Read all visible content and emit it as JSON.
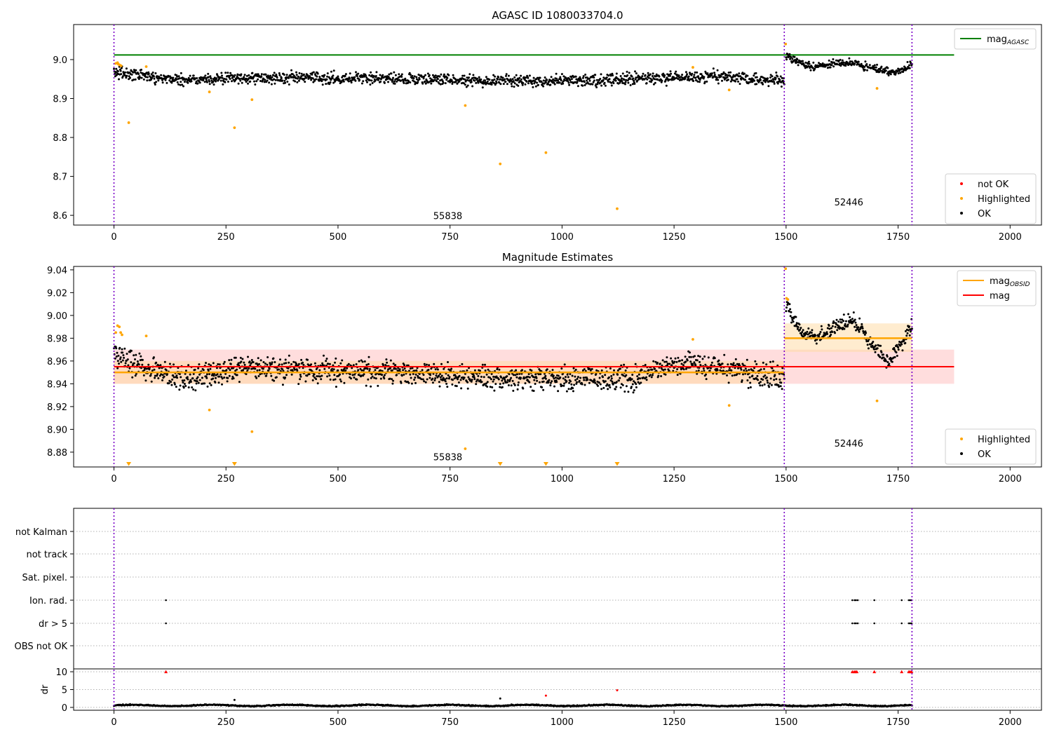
{
  "colors": {
    "ok": "#000000",
    "highlighted": "#ffa500",
    "not_ok": "#ff0000",
    "agasc_line": "#008000",
    "mag_line": "#ff0000",
    "mag_obsid_line": "#ffa500",
    "obsid_boundary": "#7b00c8",
    "mag_band": "#ffb3b3",
    "obsid_band": "#ffd9a0"
  },
  "chart_data": [
    {
      "type": "scatter",
      "panel": "agasc",
      "title": "AGASC ID 1080033704.0",
      "xlabel": "",
      "ylabel": "",
      "xlim": [
        -90,
        2070
      ],
      "ylim": [
        8.575,
        9.09
      ],
      "xticks": [
        0,
        250,
        500,
        750,
        1000,
        1250,
        1500,
        1750,
        2000
      ],
      "yticks": [
        8.6,
        8.7,
        8.8,
        8.9,
        9.0
      ],
      "ytick_labels": [
        "8.6",
        "8.7",
        "8.8",
        "8.9",
        "9.0"
      ],
      "legend_placement": [
        "top-right",
        "bottom-right"
      ],
      "grid": false,
      "mag_agasc": {
        "name": "mag_{AGASC}",
        "value": 9.012,
        "x_range": [
          0,
          1875
        ]
      },
      "obsid_boundaries": [
        0,
        1496,
        1781
      ],
      "obsid_labels": [
        {
          "text": "55838",
          "x": 745,
          "y": 8.59
        },
        {
          "text": "52446",
          "x": 1640,
          "y": 8.625
        }
      ],
      "series": [
        {
          "name": "not OK",
          "color": "#ff0000",
          "points": []
        },
        {
          "name": "Highlighted",
          "color": "#ffa500",
          "points": [
            [
              4,
              8.99
            ],
            [
              8,
              8.992
            ],
            [
              10,
              8.988
            ],
            [
              13,
              8.986
            ],
            [
              16,
              8.984
            ],
            [
              33,
              8.838
            ],
            [
              72,
              8.982
            ],
            [
              213,
              8.917
            ],
            [
              269,
              8.825
            ],
            [
              308,
              8.897
            ],
            [
              784,
              8.882
            ],
            [
              862,
              8.732
            ],
            [
              964,
              8.761
            ],
            [
              1123,
              8.617
            ],
            [
              1292,
              8.98
            ],
            [
              1373,
              8.922
            ],
            [
              1499,
              9.04
            ],
            [
              1703,
              8.926
            ]
          ]
        },
        {
          "name": "OK",
          "color": "#000000",
          "segments": [
            {
              "x_range": [
                0,
                1496
              ],
              "mean": 8.951,
              "spread": 0.013,
              "wave": [
                [
                  0,
                  8.968
                ],
                [
                  40,
                  8.962
                ],
                [
                  150,
                  8.948
                ],
                [
                  300,
                  8.953
                ],
                [
                  600,
                  8.952
                ],
                [
                  900,
                  8.945
                ],
                [
                  1200,
                  8.951
                ],
                [
                  1350,
                  8.958
                ],
                [
                  1496,
                  8.944
                ]
              ]
            },
            {
              "x_range": [
                1500,
                1781
              ],
              "mean": 8.985,
              "spread": 0.009,
              "wave": [
                [
                  1500,
                  9.006
                ],
                [
                  1560,
                  8.98
                ],
                [
                  1610,
                  8.99
                ],
                [
                  1650,
                  8.992
                ],
                [
                  1700,
                  8.975
                ],
                [
                  1740,
                  8.966
                ],
                [
                  1781,
                  8.986
                ]
              ]
            }
          ]
        }
      ]
    },
    {
      "type": "scatter",
      "panel": "magnitude",
      "title": "Magnitude Estimates",
      "xlabel": "",
      "ylabel": "",
      "xlim": [
        -90,
        2070
      ],
      "ylim": [
        8.867,
        9.043
      ],
      "xticks": [
        0,
        250,
        500,
        750,
        1000,
        1250,
        1500,
        1750,
        2000
      ],
      "yticks": [
        8.88,
        8.9,
        8.92,
        8.94,
        8.96,
        8.98,
        9.0,
        9.02,
        9.04
      ],
      "ytick_labels": [
        "8.88",
        "8.90",
        "8.92",
        "8.94",
        "8.96",
        "8.98",
        "9.00",
        "9.02",
        "9.04"
      ],
      "legend_placement": [
        "top-right",
        "bottom-right"
      ],
      "grid": false,
      "mag": {
        "name": "mag",
        "value": 8.955,
        "band": [
          8.94,
          8.97
        ],
        "x_range": [
          0,
          1875
        ]
      },
      "mag_obsid": [
        {
          "name": "mag_{OBSID}",
          "value": 8.95,
          "band": [
            8.94,
            8.96
          ],
          "x_range": [
            0,
            1496
          ]
        },
        {
          "value": 8.98,
          "band": [
            8.968,
            8.993
          ],
          "x_range": [
            1496,
            1781
          ]
        }
      ],
      "obsid_boundaries": [
        0,
        1496,
        1781
      ],
      "obsid_labels": [
        {
          "text": "55838",
          "x": 745,
          "y": 8.873
        },
        {
          "text": "52446",
          "x": 1640,
          "y": 8.885
        }
      ],
      "below_range_markers_x": [
        33,
        269,
        862,
        964,
        1123
      ],
      "series": [
        {
          "name": "Highlighted",
          "color": "#ffa500",
          "points": [
            [
              4,
              8.985
            ],
            [
              8,
              8.991
            ],
            [
              12,
              8.99
            ],
            [
              15,
              8.985
            ],
            [
              18,
              8.983
            ],
            [
              72,
              8.982
            ],
            [
              213,
              8.917
            ],
            [
              308,
              8.898
            ],
            [
              784,
              8.883
            ],
            [
              1292,
              8.979
            ],
            [
              1373,
              8.921
            ],
            [
              1499,
              9.041
            ],
            [
              1501,
              9.015
            ],
            [
              1504,
              9.014
            ],
            [
              1703,
              8.925
            ]
          ]
        },
        {
          "name": "OK",
          "color": "#000000",
          "segments": [
            {
              "x_range": [
                0,
                1496
              ],
              "mean": 8.95,
              "spread": 0.009,
              "wave": [
                [
                  0,
                  8.968
                ],
                [
                  40,
                  8.958
                ],
                [
                  160,
                  8.944
                ],
                [
                  300,
                  8.954
                ],
                [
                  600,
                  8.95
                ],
                [
                  900,
                  8.944
                ],
                [
                  1150,
                  8.945
                ],
                [
                  1280,
                  8.958
                ],
                [
                  1380,
                  8.952
                ],
                [
                  1496,
                  8.945
                ]
              ]
            },
            {
              "x_range": [
                1500,
                1781
              ],
              "mean": 8.98,
              "spread": 0.006,
              "wave": [
                [
                  1500,
                  9.008
                ],
                [
                  1525,
                  8.99
                ],
                [
                  1560,
                  8.98
                ],
                [
                  1610,
                  8.99
                ],
                [
                  1650,
                  8.996
                ],
                [
                  1690,
                  8.975
                ],
                [
                  1730,
                  8.958
                ],
                [
                  1781,
                  8.99
                ]
              ]
            }
          ]
        }
      ]
    },
    {
      "type": "scatter",
      "panel": "flags",
      "title": "",
      "xlim": [
        -90,
        2070
      ],
      "xticks": [
        0,
        250,
        500,
        750,
        1000,
        1250,
        1500,
        1750,
        2000
      ],
      "grid": true,
      "obsid_boundaries": [
        0,
        1496,
        1781
      ],
      "flag_rows": [
        "not Kalman",
        "not track",
        "Sat. pixel.",
        "Ion. rad.",
        "dr > 5",
        "OBS not OK"
      ],
      "flag_points": {
        "Ion. rad.": [
          116,
          1648,
          1653,
          1656,
          1660,
          1697,
          1758,
          1774,
          1777,
          1780
        ],
        "dr > 5": [
          116,
          1648,
          1653,
          1656,
          1660,
          1697,
          1758,
          1774,
          1777,
          1780
        ]
      },
      "dr": {
        "ylabel": "dr",
        "ylim": [
          -0.8,
          10.8
        ],
        "yticks": [
          0,
          5,
          10
        ],
        "ytick_labels": [
          "0",
          "5",
          "10"
        ],
        "clipped_value": 10,
        "clipped_x": [
          116,
          1648,
          1652,
          1655,
          1658,
          1697,
          1758,
          1774,
          1777,
          1780
        ],
        "highlighted_points": [
          [
            269,
            2.1
          ],
          [
            862,
            2.5
          ],
          [
            964,
            3.3
          ],
          [
            1123,
            4.8
          ]
        ],
        "baseline": {
          "x_range": [
            0,
            1781
          ],
          "mean": 0.55,
          "spread": 0.35
        }
      }
    }
  ]
}
